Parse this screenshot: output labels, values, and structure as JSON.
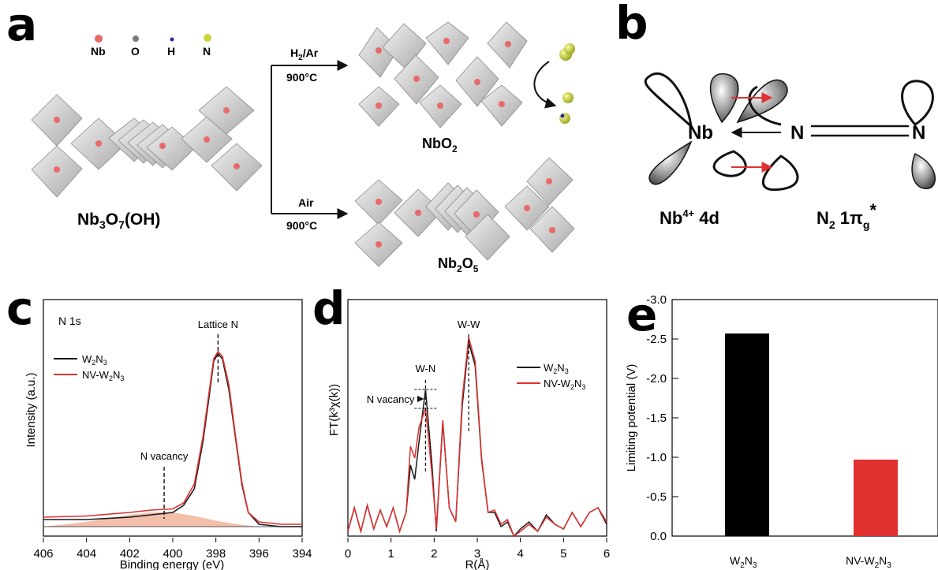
{
  "panels": {
    "a": {
      "letter": "a",
      "legend": [
        "Nb",
        "O",
        "H",
        "N"
      ],
      "colors": {
        "Nb": "#e86a6a",
        "O": "#7a7a7a",
        "H": "#2a2aa0",
        "N": "#c8d43a"
      },
      "reactant": {
        "main": "Nb",
        "sub1": "3",
        "mid": "O",
        "sub2": "7",
        "tail": "(OH)"
      },
      "top_arrow": {
        "gas_main": "H",
        "gas_sub": "2",
        "gas_tail": "/Ar",
        "temp": "900°C"
      },
      "bottom_arrow": {
        "gas": "Air",
        "temp": "900°C"
      },
      "product_top": {
        "main": "NbO",
        "sub": "2"
      },
      "product_bottom": {
        "main": "Nb",
        "sub1": "2",
        "mid": "O",
        "sub2": "5"
      }
    },
    "b": {
      "letter": "b",
      "nb_label": "Nb",
      "n_label": "N",
      "nb_orbital": {
        "main": "Nb",
        "sup": "4+",
        "tail": " 4d"
      },
      "n2_orbital": {
        "main": "N",
        "sub1": "2",
        "mid": " 1π",
        "sub2": "g",
        "sup": "*"
      },
      "arrow_color": "#e03030"
    }
  },
  "chart_data": [
    {
      "panel": "c",
      "type": "line",
      "inset_label": "N 1s",
      "xlabel": "Binding energy (eV)",
      "ylabel": "Intensity (a.u.)",
      "xlim": [
        406,
        394
      ],
      "x_ticks": [
        "406",
        "404",
        "402",
        "400",
        "398",
        "396",
        "394"
      ],
      "reversed_x": true,
      "annotations": [
        {
          "text": "Lattice N",
          "x": 397.9
        },
        {
          "text": "N vacancy",
          "x": 400.4
        }
      ],
      "series": [
        {
          "name": "W2N3",
          "label_main": "W",
          "s1": "2",
          "mid": "N",
          "s2": "3",
          "color": "#1a1a1a",
          "points": [
            [
              406,
              0.07
            ],
            [
              404,
              0.07
            ],
            [
              402,
              0.08
            ],
            [
              401,
              0.09
            ],
            [
              400,
              0.1
            ],
            [
              399.5,
              0.13
            ],
            [
              399,
              0.2
            ],
            [
              398.6,
              0.4
            ],
            [
              398.3,
              0.6
            ],
            [
              398.1,
              0.74
            ],
            [
              397.9,
              0.77
            ],
            [
              397.7,
              0.75
            ],
            [
              397.4,
              0.62
            ],
            [
              397.1,
              0.42
            ],
            [
              396.8,
              0.22
            ],
            [
              396.5,
              0.1
            ],
            [
              396,
              0.05
            ],
            [
              395,
              0.04
            ],
            [
              394,
              0.04
            ]
          ]
        },
        {
          "name": "NV-W2N3",
          "label_main": "NV-W",
          "s1": "2",
          "mid": "N",
          "s2": "3",
          "color": "#e03030",
          "points": [
            [
              406,
              0.08
            ],
            [
              404,
              0.085
            ],
            [
              402,
              0.1
            ],
            [
              401,
              0.11
            ],
            [
              400,
              0.115
            ],
            [
              399.5,
              0.14
            ],
            [
              399,
              0.22
            ],
            [
              398.6,
              0.42
            ],
            [
              398.3,
              0.62
            ],
            [
              398.1,
              0.75
            ],
            [
              397.9,
              0.78
            ],
            [
              397.7,
              0.76
            ],
            [
              397.4,
              0.64
            ],
            [
              397.1,
              0.43
            ],
            [
              396.8,
              0.23
            ],
            [
              396.5,
              0.1
            ],
            [
              396,
              0.06
            ],
            [
              395,
              0.05
            ],
            [
              394,
              0.05
            ]
          ]
        }
      ]
    },
    {
      "panel": "d",
      "type": "line",
      "xlabel": "R(Å)",
      "ylabel": "FT(k³χ(k))",
      "xlim": [
        0,
        6
      ],
      "x_ticks": [
        "0",
        "1",
        "2",
        "3",
        "4",
        "5",
        "6"
      ],
      "annotations": [
        {
          "text": "W-N",
          "x": 1.8
        },
        {
          "text": "W-W",
          "x": 2.8
        },
        {
          "text": "N vacancy",
          "x": 1.8
        }
      ],
      "series": [
        {
          "name": "W2N3",
          "label_main": "W",
          "s1": "2",
          "mid": "N",
          "s2": "3",
          "color": "#1a1a1a",
          "points": [
            [
              0,
              0.02
            ],
            [
              0.15,
              0.12
            ],
            [
              0.3,
              0.02
            ],
            [
              0.45,
              0.13
            ],
            [
              0.6,
              0.03
            ],
            [
              0.75,
              0.11
            ],
            [
              0.9,
              0.04
            ],
            [
              1.05,
              0.12
            ],
            [
              1.2,
              0.02
            ],
            [
              1.35,
              0.1
            ],
            [
              1.45,
              0.3
            ],
            [
              1.55,
              0.24
            ],
            [
              1.65,
              0.4
            ],
            [
              1.8,
              0.62
            ],
            [
              1.95,
              0.3
            ],
            [
              2.05,
              0.02
            ],
            [
              2.2,
              0.48
            ],
            [
              2.35,
              0.12
            ],
            [
              2.5,
              0.06
            ],
            [
              2.65,
              0.55
            ],
            [
              2.8,
              0.82
            ],
            [
              2.95,
              0.72
            ],
            [
              3.1,
              0.32
            ],
            [
              3.25,
              0.1
            ],
            [
              3.4,
              0.1
            ],
            [
              3.55,
              0.04
            ],
            [
              3.7,
              0.06
            ],
            [
              3.85,
              0.0
            ],
            [
              4.0,
              0.03
            ],
            [
              4.2,
              0.06
            ],
            [
              4.4,
              0.02
            ],
            [
              4.6,
              0.09
            ],
            [
              4.8,
              0.05
            ],
            [
              5.0,
              0.03
            ],
            [
              5.2,
              0.1
            ],
            [
              5.4,
              0.04
            ],
            [
              5.6,
              0.1
            ],
            [
              5.8,
              0.12
            ],
            [
              6.0,
              0.05
            ]
          ]
        },
        {
          "name": "NV-W2N3",
          "label_main": "NV-W",
          "s1": "2",
          "mid": "N",
          "s2": "3",
          "color": "#e03030",
          "points": [
            [
              0,
              0.02
            ],
            [
              0.15,
              0.12
            ],
            [
              0.3,
              0.02
            ],
            [
              0.45,
              0.13
            ],
            [
              0.6,
              0.03
            ],
            [
              0.75,
              0.11
            ],
            [
              0.9,
              0.04
            ],
            [
              1.05,
              0.12
            ],
            [
              1.2,
              0.02
            ],
            [
              1.35,
              0.1
            ],
            [
              1.45,
              0.38
            ],
            [
              1.55,
              0.33
            ],
            [
              1.65,
              0.46
            ],
            [
              1.8,
              0.54
            ],
            [
              1.95,
              0.26
            ],
            [
              2.05,
              0.03
            ],
            [
              2.2,
              0.49
            ],
            [
              2.35,
              0.12
            ],
            [
              2.5,
              0.06
            ],
            [
              2.65,
              0.58
            ],
            [
              2.8,
              0.84
            ],
            [
              2.95,
              0.74
            ],
            [
              3.1,
              0.33
            ],
            [
              3.25,
              0.1
            ],
            [
              3.4,
              0.11
            ],
            [
              3.55,
              0.05
            ],
            [
              3.7,
              0.07
            ],
            [
              3.85,
              0.0
            ],
            [
              4.0,
              0.02
            ],
            [
              4.2,
              0.05
            ],
            [
              4.4,
              0.02
            ],
            [
              4.6,
              0.08
            ],
            [
              4.8,
              0.05
            ],
            [
              5.0,
              0.03
            ],
            [
              5.2,
              0.1
            ],
            [
              5.4,
              0.04
            ],
            [
              5.6,
              0.1
            ],
            [
              5.8,
              0.12
            ],
            [
              6.0,
              0.06
            ]
          ]
        }
      ]
    },
    {
      "panel": "e",
      "type": "bar",
      "ylabel": "Limiting potential (V)",
      "ylim": [
        0.0,
        -3.0
      ],
      "y_ticks": [
        "0.0",
        "-0.5",
        "-1.0",
        "-1.5",
        "-2.0",
        "-2.5",
        "-3.0"
      ],
      "categories": [
        {
          "main": "W",
          "s1": "2",
          "mid": "N",
          "s2": "3"
        },
        {
          "main": "NV-W",
          "s1": "2",
          "mid": "N",
          "s2": "3"
        }
      ],
      "values": [
        -2.57,
        -0.97
      ],
      "colors": [
        "#000000",
        "#e03030"
      ]
    }
  ]
}
